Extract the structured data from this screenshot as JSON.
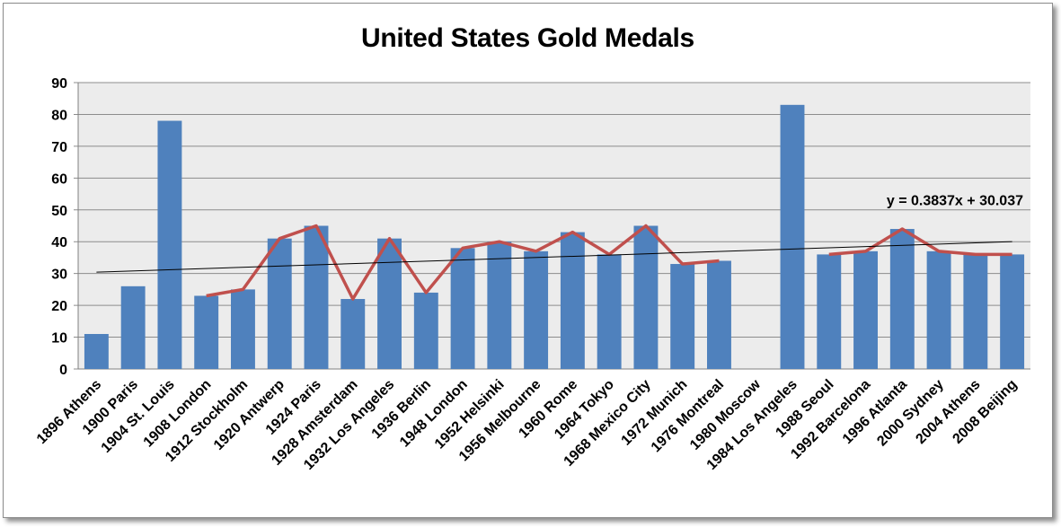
{
  "chart_data": {
    "type": "bar",
    "title": "United States Gold Medals",
    "xlabel": "",
    "ylabel": "",
    "ylim": [
      0,
      90
    ],
    "yticks": [
      0,
      10,
      20,
      30,
      40,
      50,
      60,
      70,
      80,
      90
    ],
    "grid": true,
    "legend": "none",
    "categories": [
      "1896 Athens",
      "1900 Paris",
      "1904 St. Louis",
      "1908 London",
      "1912 Stockholm",
      "1920 Antwerp",
      "1924 Paris",
      "1928 Amsterdam",
      "1932 Los Angeles",
      "1936 Berlin",
      "1948 London",
      "1952 Helsinki",
      "1956 Melbourne",
      "1960 Rome",
      "1964 Tokyo",
      "1968 Mexico City",
      "1972 Munich",
      "1976 Montreal",
      "1980 Moscow",
      "1984 Los Angeles",
      "1988 Seoul",
      "1992 Barcelona",
      "1996 Atlanta",
      "2000 Sydney",
      "2004 Athens",
      "2008 Beijing"
    ],
    "values": [
      11,
      26,
      78,
      23,
      25,
      41,
      45,
      22,
      41,
      24,
      38,
      40,
      37,
      43,
      36,
      45,
      33,
      34,
      null,
      83,
      36,
      37,
      44,
      37,
      36,
      36
    ],
    "moving_average_line": [
      null,
      null,
      null,
      23,
      25,
      41,
      45,
      22,
      41,
      24,
      38,
      40,
      37,
      43,
      36,
      45,
      33,
      34,
      null,
      null,
      36,
      37,
      44,
      37,
      36,
      36
    ],
    "trendline": {
      "slope": 0.3837,
      "intercept": 30.037,
      "equation": "y = 0.3837x + 30.037"
    },
    "colors": {
      "bars": "#4f81bd",
      "line": "#c0504d",
      "trend": "#000000",
      "plot_bg": "#ececec",
      "grid": "#8c8c8c"
    }
  }
}
